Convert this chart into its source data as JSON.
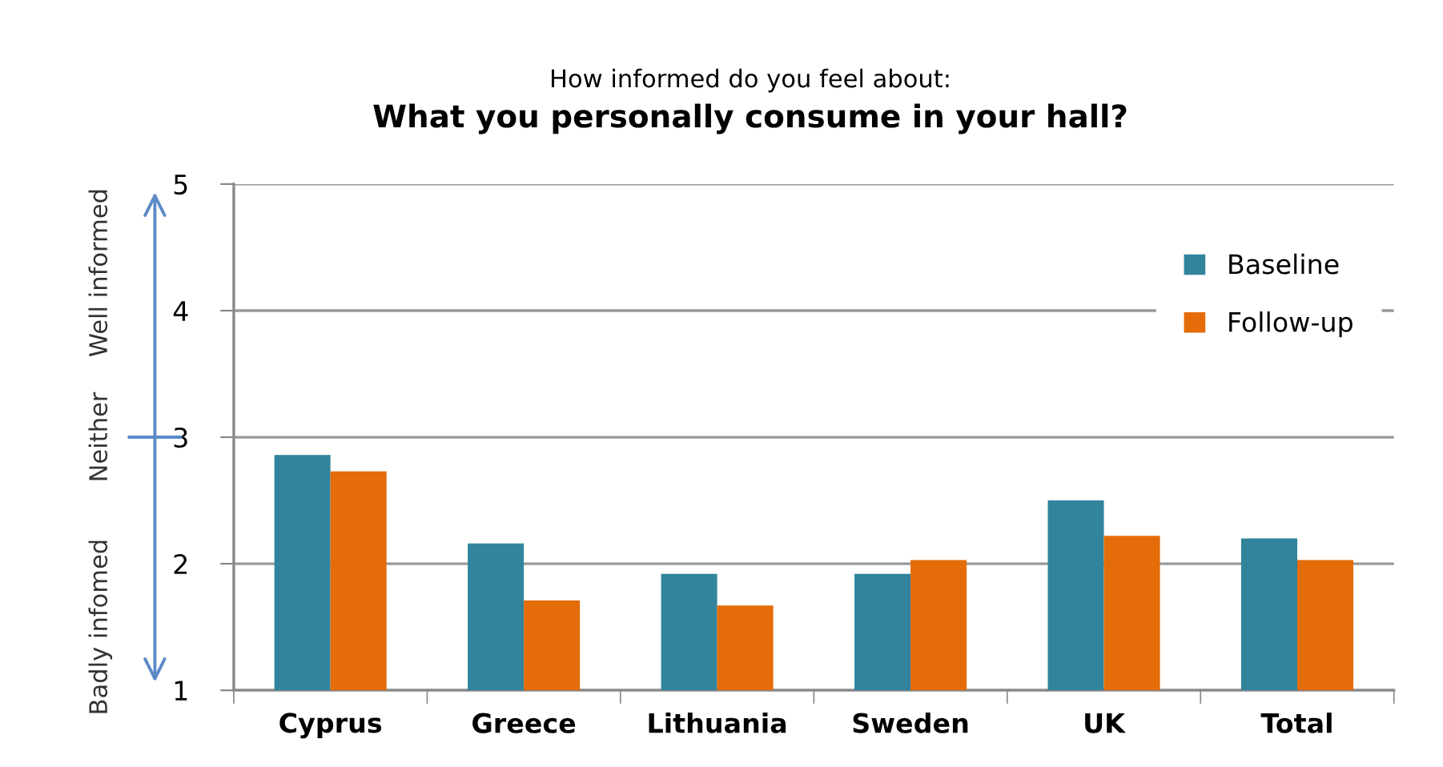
{
  "chart_data": {
    "type": "bar",
    "subtitle": "How informed do you feel about:",
    "title": "What you personally consume in your hall?",
    "categories": [
      "Cyprus",
      "Greece",
      "Lithuania",
      "Sweden",
      "UK",
      "Total"
    ],
    "series": [
      {
        "name": "Baseline",
        "color": "#31849b",
        "values": [
          2.86,
          2.16,
          1.92,
          1.92,
          2.5,
          2.2
        ]
      },
      {
        "name": "Follow-up",
        "color": "#e46c0a",
        "values": [
          2.73,
          1.71,
          1.67,
          2.03,
          2.22,
          2.03
        ]
      }
    ],
    "ylim": [
      1,
      5
    ],
    "yticks": [
      1,
      2,
      3,
      4,
      5
    ],
    "grid": "y",
    "legend": "right",
    "annotations": [
      "Well informed",
      "Neither",
      "Badly infomed"
    ]
  }
}
